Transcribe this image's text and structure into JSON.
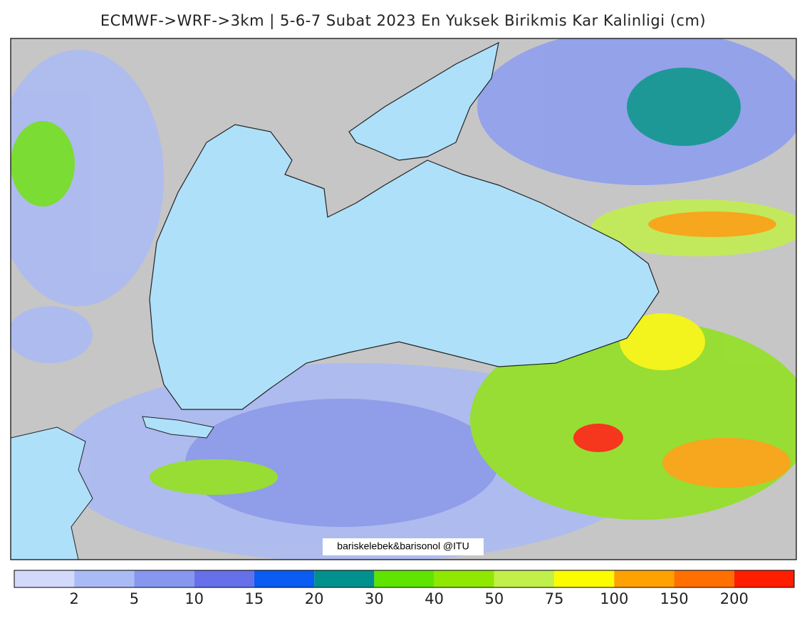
{
  "title": "ECMWF->WRF->3km | 5-6-7 Subat 2023 En Yuksek Birikmis Kar Kalinligi (cm)",
  "credit": "bariskelebek&barisonol @ITU",
  "colorbar": {
    "colors": [
      "#d2d9fb",
      "#aabaf5",
      "#8797f0",
      "#6670e8",
      "#0a5cf2",
      "#00918e",
      "#5fe400",
      "#90e800",
      "#c2f04a",
      "#fcfc00",
      "#ffa200",
      "#ff7000",
      "#ff1e00"
    ],
    "labels": [
      2,
      5,
      10,
      15,
      20,
      30,
      40,
      50,
      75,
      100,
      150,
      200
    ]
  }
}
